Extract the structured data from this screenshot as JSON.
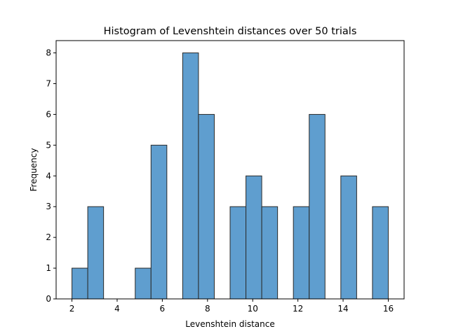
{
  "chart_data": {
    "type": "bar",
    "title": "Histogram of Levenshtein distances over 50 trials",
    "xlabel": "Levenshtein distance",
    "ylabel": "Frequency",
    "xlim": [
      1.3,
      16.7
    ],
    "ylim": [
      0,
      8.4
    ],
    "xticks": [
      2,
      4,
      6,
      8,
      10,
      12,
      14,
      16
    ],
    "yticks": [
      0,
      1,
      2,
      3,
      4,
      5,
      6,
      7,
      8
    ],
    "bin_edges": [
      2.0,
      2.7,
      3.4,
      4.1,
      4.8,
      5.5,
      6.2,
      6.9,
      7.6,
      8.3,
      9.0,
      9.7,
      10.4,
      11.1,
      11.8,
      12.5,
      13.2,
      13.9,
      14.6,
      15.3,
      16.0
    ],
    "values": [
      1,
      3,
      0,
      0,
      1,
      5,
      0,
      8,
      6,
      0,
      3,
      4,
      3,
      0,
      3,
      6,
      0,
      4,
      0,
      3
    ],
    "bar_color": "#5f9ecf",
    "edge_color": "#2a2a2a",
    "grid": false,
    "legend": "none"
  }
}
